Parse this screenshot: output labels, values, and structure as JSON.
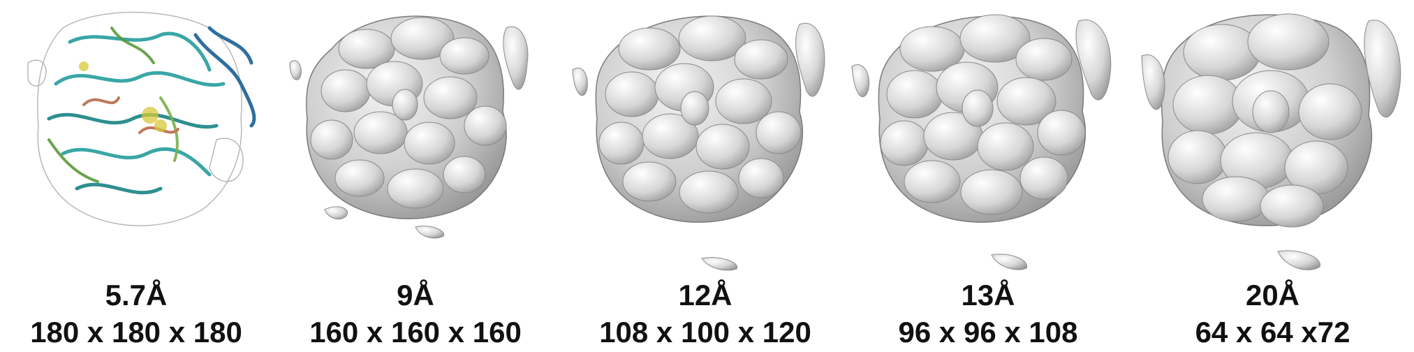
{
  "figure": {
    "panels": [
      {
        "resolution": "5.7Å",
        "box_size": "180 x 180 x 180"
      },
      {
        "resolution": "9Å",
        "box_size": "160 x 160 x 160"
      },
      {
        "resolution": "12Å",
        "box_size": "108 x 100 x 120"
      },
      {
        "resolution": "13Å",
        "box_size": "96 x 96 x 108"
      },
      {
        "resolution": "20Å",
        "box_size": "64 x 64 x72"
      }
    ]
  },
  "colors": {
    "background": "#ffffff",
    "text": "#111111",
    "density_fill": "#cfcfcf",
    "density_shade": "#8f8f8f",
    "ribbon_cyan": "#3aa6a6",
    "ribbon_green": "#5a9a3a",
    "ribbon_yellow": "#d8c83a"
  }
}
